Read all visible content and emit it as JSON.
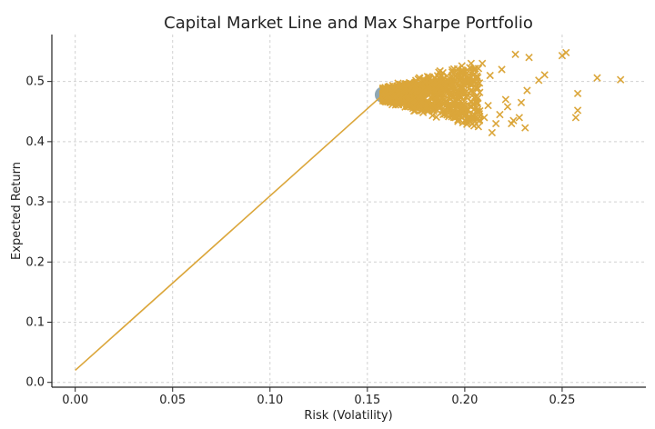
{
  "chart_data": {
    "type": "scatter",
    "title": "Capital Market Line and Max Sharpe Portfolio",
    "xlabel": "Risk (Volatility)",
    "ylabel": "Expected Return",
    "xlim": [
      -0.012,
      0.293
    ],
    "ylim": [
      -0.008,
      0.578
    ],
    "x_ticks": [
      "0.00",
      "0.05",
      "0.10",
      "0.15",
      "0.20",
      "0.25"
    ],
    "y_ticks": [
      "0.0",
      "0.1",
      "0.2",
      "0.3",
      "0.4",
      "0.5"
    ],
    "x_tick_values": [
      0,
      0.05,
      0.1,
      0.15,
      0.2,
      0.25
    ],
    "y_tick_values": [
      0,
      0.1,
      0.2,
      0.3,
      0.4,
      0.5
    ],
    "grid": true,
    "colors": {
      "portfolios": "#dba63a",
      "cml": "#dba63a",
      "max_sharpe": "#8fa7b3"
    },
    "capital_market_line": {
      "x": [
        0.0,
        0.158
      ],
      "y": [
        0.02,
        0.478
      ]
    },
    "max_sharpe_portfolio": {
      "x": 0.158,
      "y": 0.478
    },
    "portfolios_marker": "x",
    "portfolios_outliers": {
      "x": [
        0.28,
        0.268,
        0.258,
        0.258,
        0.257,
        0.252,
        0.25,
        0.241,
        0.238,
        0.233,
        0.232,
        0.231,
        0.229,
        0.228,
        0.226,
        0.225,
        0.224,
        0.222,
        0.221,
        0.219,
        0.218,
        0.216,
        0.214,
        0.213,
        0.212,
        0.21,
        0.209,
        0.207,
        0.206,
        0.204
      ],
      "y": [
        0.503,
        0.506,
        0.48,
        0.452,
        0.44,
        0.548,
        0.543,
        0.511,
        0.502,
        0.54,
        0.485,
        0.423,
        0.465,
        0.44,
        0.545,
        0.435,
        0.43,
        0.458,
        0.47,
        0.52,
        0.445,
        0.43,
        0.415,
        0.51,
        0.46,
        0.44,
        0.53,
        0.425,
        0.49,
        0.43
      ]
    }
  }
}
